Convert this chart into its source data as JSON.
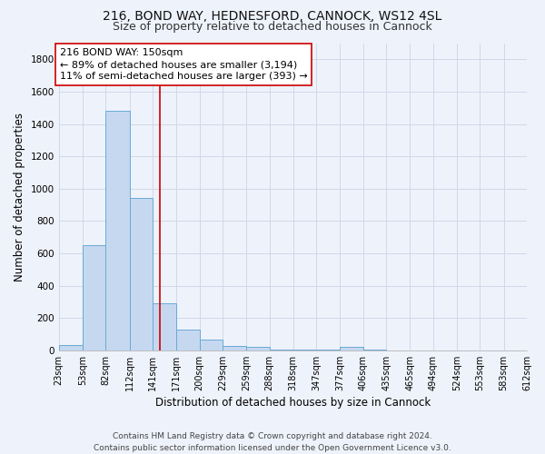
{
  "title_line1": "216, BOND WAY, HEDNESFORD, CANNOCK, WS12 4SL",
  "title_line2": "Size of property relative to detached houses in Cannock",
  "xlabel": "Distribution of detached houses by size in Cannock",
  "ylabel": "Number of detached properties",
  "footer_line1": "Contains HM Land Registry data © Crown copyright and database right 2024.",
  "footer_line2": "Contains public sector information licensed under the Open Government Licence v3.0.",
  "bin_edges": [
    23,
    53,
    82,
    112,
    141,
    171,
    200,
    229,
    259,
    288,
    318,
    347,
    377,
    406,
    435,
    465,
    494,
    524,
    553,
    583,
    612
  ],
  "bar_heights": [
    35,
    650,
    1480,
    940,
    290,
    130,
    65,
    25,
    20,
    5,
    5,
    5,
    20,
    5,
    0,
    0,
    0,
    0,
    0,
    0
  ],
  "bar_color": "#c5d8f0",
  "bar_edge_color": "#6aaad4",
  "red_line_x": 150,
  "red_line_color": "#cc0000",
  "annotation_text_line1": "216 BOND WAY: 150sqm",
  "annotation_text_line2": "← 89% of detached houses are smaller (3,194)",
  "annotation_text_line3": "11% of semi-detached houses are larger (393) →",
  "annotation_box_color": "white",
  "annotation_box_edge": "#cc0000",
  "ylim": [
    0,
    1900
  ],
  "background_color": "#eef2fb",
  "grid_color": "#d0d8e8",
  "title_fontsize": 10,
  "subtitle_fontsize": 9,
  "axis_label_fontsize": 8.5,
  "tick_fontsize": 7,
  "annotation_fontsize": 8,
  "footer_fontsize": 6.5
}
